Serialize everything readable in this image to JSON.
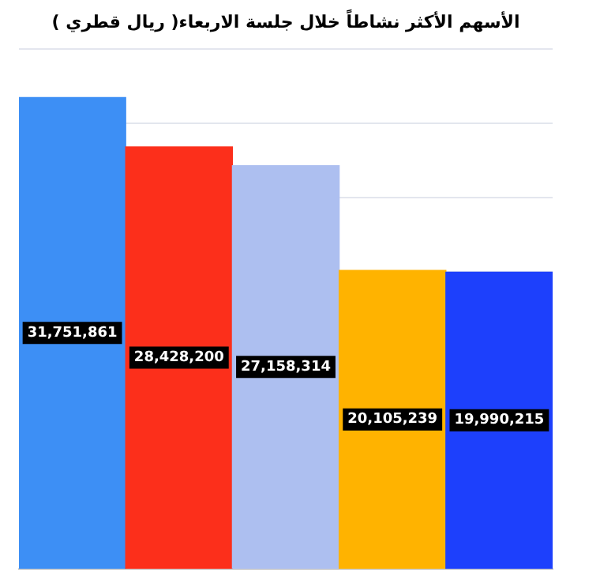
{
  "chart_data": {
    "type": "bar",
    "title": "الأسهم الأكثر نشاطاً خلال جلسة الاربعاء( ريال قطري )",
    "categories": [
      null,
      null,
      null,
      null,
      null
    ],
    "values": [
      31751861,
      28428200,
      27158314,
      20105239,
      19990215
    ],
    "value_labels": [
      "31,751,861",
      "28,428,200",
      "27,158,314",
      "20,105,239",
      "19,990,215"
    ],
    "colors": [
      "#3d8ff5",
      "#fc2f1b",
      "#adbff0",
      "#ffb300",
      "#1d40fc"
    ],
    "grid": "y",
    "tick_labels": false
  }
}
